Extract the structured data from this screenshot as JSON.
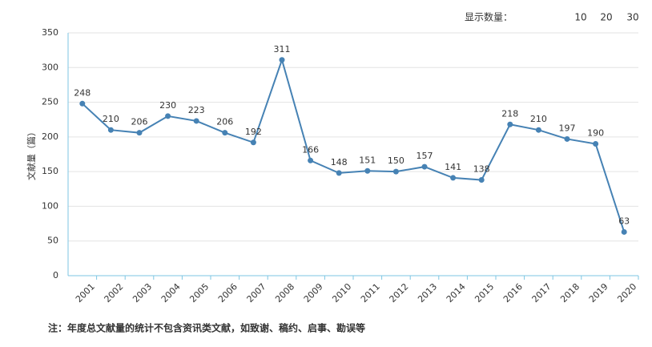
{
  "chart_data": {
    "type": "line",
    "y_label": "文献量（篇）",
    "categories": [
      "2001",
      "2002",
      "2003",
      "2004",
      "2005",
      "2006",
      "2007",
      "2008",
      "2009",
      "2010",
      "2011",
      "2012",
      "2013",
      "2014",
      "2015",
      "2016",
      "2017",
      "2018",
      "2019",
      "2020"
    ],
    "values": [
      248,
      210,
      206,
      230,
      223,
      206,
      192,
      311,
      166,
      148,
      151,
      150,
      157,
      141,
      138,
      218,
      210,
      197,
      190,
      63
    ],
    "color": "#4682b4",
    "ylim": [
      0,
      350
    ],
    "yticks": [
      0,
      50,
      100,
      150,
      200,
      250,
      300,
      350
    ],
    "grid": true
  },
  "controls": {
    "label": "显示数量：",
    "options": [
      {
        "text": "10",
        "color": "#1f1fd6"
      },
      {
        "text": "20",
        "color": "#d61f1f"
      },
      {
        "text": "30",
        "color": "#1f2a8a"
      }
    ]
  },
  "note": "注：年度总文献量的统计不包含资讯类文献，如致谢、稿约、启事、勘误等"
}
